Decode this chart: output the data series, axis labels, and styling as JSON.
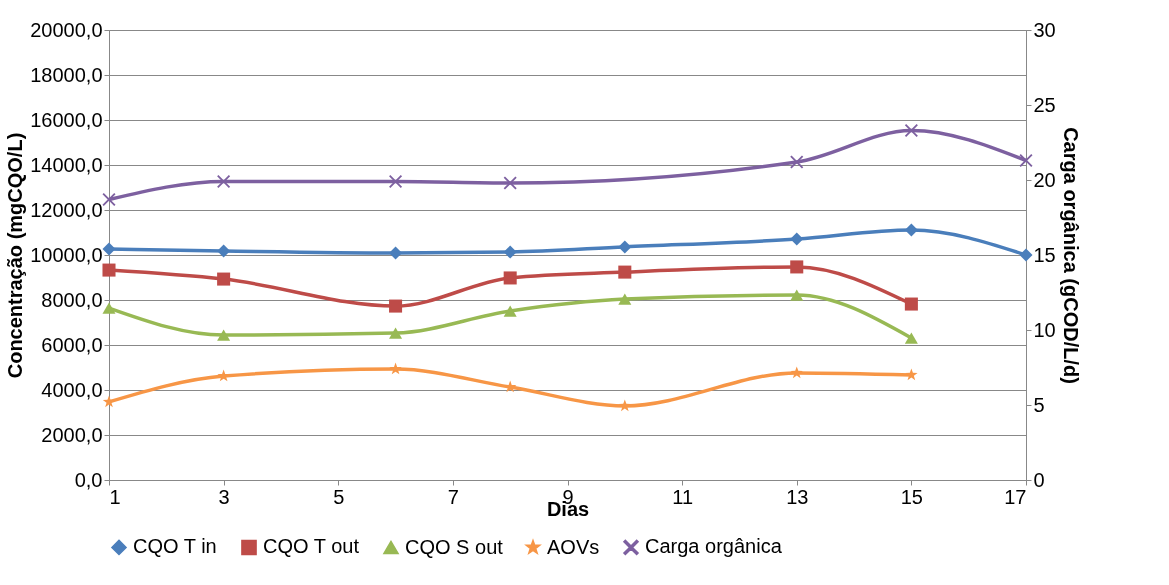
{
  "chart_data": {
    "type": "line",
    "xlabel": "Dias",
    "ylabel": "Concentração (mgCQO/L)",
    "y2label": "Carga orgânica (gCOD/L/d)",
    "x": [
      1,
      3,
      6,
      8,
      10,
      13,
      15,
      17
    ],
    "xlim": [
      1,
      17
    ],
    "xticks": [
      1,
      3,
      5,
      7,
      9,
      11,
      13,
      15,
      17
    ],
    "ylim": [
      0,
      20000
    ],
    "yticks": [
      {
        "value": 0,
        "label": "0,0"
      },
      {
        "value": 2000,
        "label": "2000,0"
      },
      {
        "value": 4000,
        "label": "4000,0"
      },
      {
        "value": 6000,
        "label": "6000,0"
      },
      {
        "value": 8000,
        "label": "8000,0"
      },
      {
        "value": 10000,
        "label": "10000,0"
      },
      {
        "value": 12000,
        "label": "12000,0"
      },
      {
        "value": 14000,
        "label": "14000,0"
      },
      {
        "value": 16000,
        "label": "16000,0"
      },
      {
        "value": 18000,
        "label": "18000,0"
      },
      {
        "value": 20000,
        "label": "20000,0"
      }
    ],
    "y2lim": [
      0,
      30
    ],
    "y2ticks": [
      0,
      5,
      10,
      15,
      20,
      25,
      30
    ],
    "grid": "y",
    "legend": "bottom",
    "series": [
      {
        "name": "CQO T in",
        "color": "#4a7ebb",
        "marker": "diamond",
        "values": [
          10270,
          10180,
          10090,
          10130,
          10360,
          10710,
          11110,
          10000
        ]
      },
      {
        "name": "CQO T out",
        "color": "#be4b48",
        "marker": "square",
        "values": [
          9330,
          8930,
          7730,
          8980,
          9240,
          9470,
          7820,
          null
        ]
      },
      {
        "name": "CQO S out",
        "color": "#98b954",
        "marker": "triangle",
        "values": [
          7640,
          6440,
          6530,
          7510,
          8040,
          8220,
          6310,
          null
        ]
      },
      {
        "name": "AOVs",
        "color": "#f79646",
        "marker": "star",
        "values": [
          3470,
          4620,
          4930,
          4130,
          3290,
          4760,
          4670,
          null
        ]
      },
      {
        "name": "Carga orgânica",
        "color": "#7d60a0",
        "marker": "cross",
        "axis": "y2",
        "x": [
          1,
          3,
          6,
          8,
          13,
          15,
          17
        ],
        "values": [
          18.7,
          19.9,
          19.9,
          19.8,
          21.2,
          23.3,
          21.3
        ]
      }
    ]
  }
}
